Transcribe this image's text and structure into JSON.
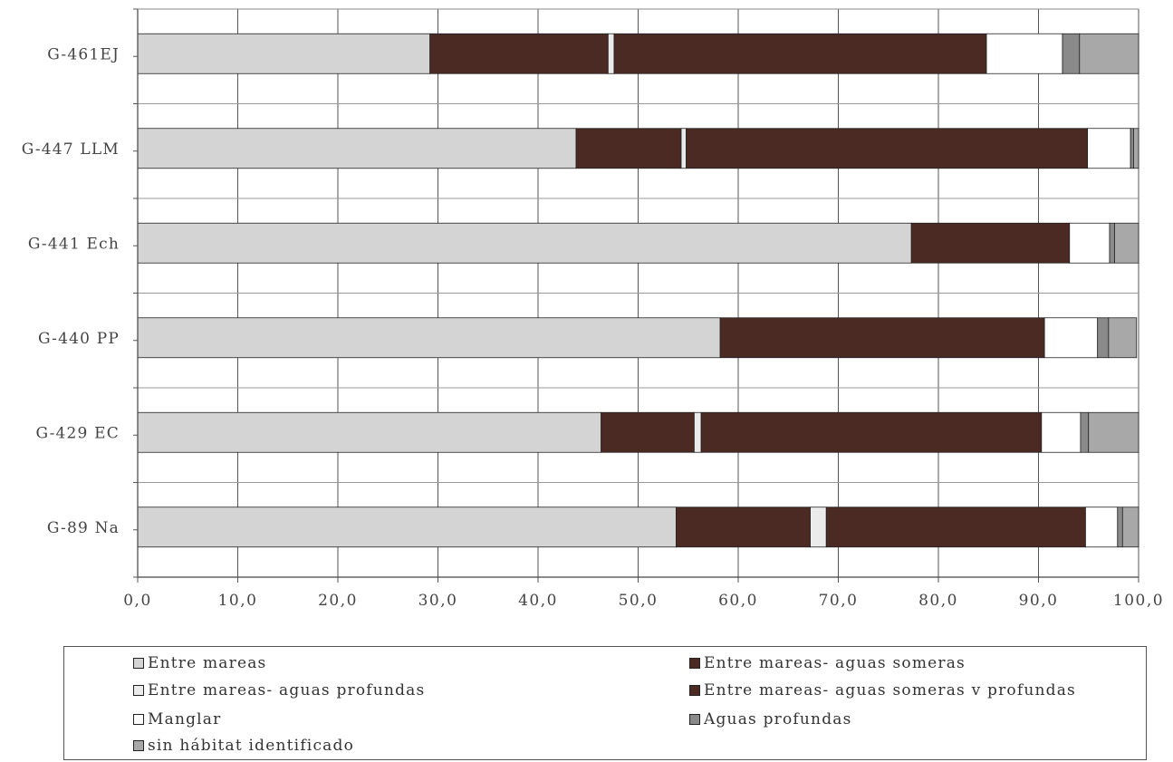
{
  "chart_data": {
    "type": "bar",
    "orientation": "horizontal",
    "stacked": true,
    "categories": [
      "G-461EJ",
      "G-447 LLM",
      "G-441 Ech",
      "G-440 PP",
      "G-429 EC",
      "G-89 Na"
    ],
    "xlim": [
      0,
      100
    ],
    "xticks": [
      "0,0",
      "10,0",
      "20,0",
      "30,0",
      "40,0",
      "50,0",
      "60,0",
      "70,0",
      "80,0",
      "90,0",
      "100,0"
    ],
    "grid": true,
    "legend_position": "bottom",
    "series": [
      {
        "name": "Entre mareas",
        "color": "#d4d4d4",
        "values": [
          29.2,
          43.8,
          77.3,
          58.2,
          46.3,
          53.8
        ]
      },
      {
        "name": "Entre mareas- aguas someras",
        "color": "#4a2a22",
        "values": [
          17.8,
          10.5,
          0,
          0,
          9.3,
          13.4
        ]
      },
      {
        "name": "Entre mareas- aguas profundas",
        "color": "#ebebeb",
        "values": [
          0.6,
          0.5,
          0,
          0,
          0.7,
          1.6
        ]
      },
      {
        "name": "Entre mareas- aguas someras v profundas",
        "color": "#4a2a22",
        "values": [
          37.2,
          40.1,
          15.8,
          32.4,
          34.0,
          25.9
        ]
      },
      {
        "name": "Manglar",
        "color": "#ffffff",
        "values": [
          7.6,
          4.3,
          4.0,
          5.3,
          3.9,
          3.2
        ]
      },
      {
        "name": "Aguas profundas",
        "color": "#8a8a8a",
        "values": [
          1.7,
          0.3,
          0.5,
          1.1,
          0.8,
          0.5
        ]
      },
      {
        "name": "sin hábitat identificado",
        "color": "#a8a8a8",
        "values": [
          5.9,
          0.5,
          2.4,
          2.8,
          5.0,
          1.6
        ]
      }
    ]
  },
  "legend": [
    {
      "label": "Entre mareas",
      "color": "#d4d4d4"
    },
    {
      "label": "Entre mareas- aguas someras",
      "color": "#4a2a22"
    },
    {
      "label": "Entre mareas- aguas profundas",
      "color": "#ebebeb"
    },
    {
      "label": "Entre mareas- aguas someras v profundas",
      "color": "#4a2a22"
    },
    {
      "label": "Manglar",
      "color": "#ffffff"
    },
    {
      "label": "Aguas profundas",
      "color": "#8a8a8a"
    },
    {
      "label": "sin hábitat identificado",
      "color": "#a8a8a8"
    }
  ]
}
